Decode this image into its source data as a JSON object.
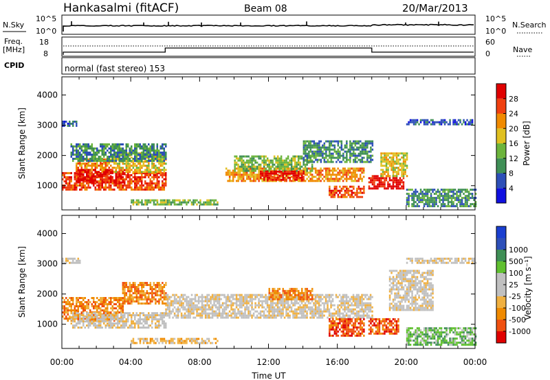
{
  "header": {
    "station": "Hankasalmi (fitACF)",
    "beam": "Beam 08",
    "date": "20/Mar/2013"
  },
  "strips": {
    "nsky": {
      "label": "N.Sky",
      "ticks": [
        "10^5",
        "10^0"
      ],
      "right_label": "N.Search"
    },
    "freq": {
      "label_top": "Freq.",
      "label_bottom": "[MHz]",
      "left_ticks": [
        "18",
        "8"
      ],
      "right_ticks": [
        "60",
        "0"
      ],
      "right_label": "Nave"
    },
    "cpid": {
      "label": "CPID",
      "text": "normal (fast stereo) 153"
    }
  },
  "power_scale": {
    "title": "Power [dB]",
    "colors": [
      "#1010e0",
      "#2d4fb8",
      "#3f8f56",
      "#6cb43c",
      "#e0c020",
      "#f08a00",
      "#f04010",
      "#e00000"
    ],
    "labels": [
      "4",
      "8",
      "12",
      "16",
      "20",
      "24",
      "28"
    ]
  },
  "velocity_scale": {
    "title": "Velocity [m s⁻¹]",
    "colors": [
      "#e00000",
      "#f05010",
      "#f08a00",
      "#f0b040",
      "#c0c0c0",
      "#c0c0c0",
      "#60c030",
      "#3f8f56",
      "#2d4fb8",
      "#1a3fd0"
    ],
    "labels": [
      "-1000",
      "-500",
      "-100",
      "-25",
      "25",
      "100",
      "500",
      "1000"
    ]
  },
  "chart_data": [
    {
      "type": "heatmap",
      "name": "power",
      "ylabel": "Slant Range [km]",
      "xlim": [
        "00:00",
        "24:00"
      ],
      "ylim": [
        200,
        4600
      ],
      "yticks": [
        1000,
        2000,
        3000,
        4000
      ],
      "scatter_regions": [
        {
          "t0": 0.0,
          "t1": 6.0,
          "r0": 850,
          "r1": 1450,
          "level": 6
        },
        {
          "t0": 0.8,
          "t1": 3.0,
          "r0": 1450,
          "r1": 1900,
          "level": 5
        },
        {
          "t0": 0.9,
          "t1": 3.6,
          "r0": 1100,
          "r1": 1550,
          "level": 7
        },
        {
          "t0": 3.0,
          "t1": 6.0,
          "r0": 1450,
          "r1": 2100,
          "level": 4
        },
        {
          "t0": 0.5,
          "t1": 6.0,
          "r0": 1800,
          "r1": 2400,
          "level": 2
        },
        {
          "t0": 9.5,
          "t1": 17.5,
          "r0": 1150,
          "r1": 1600,
          "level": 5
        },
        {
          "t0": 10.0,
          "t1": 14.5,
          "r0": 1500,
          "r1": 2000,
          "level": 3
        },
        {
          "t0": 11.5,
          "t1": 14.0,
          "r0": 1200,
          "r1": 1500,
          "level": 7
        },
        {
          "t0": 14.0,
          "t1": 18.0,
          "r0": 1800,
          "r1": 2500,
          "level": 2
        },
        {
          "t0": 15.5,
          "t1": 17.5,
          "r0": 650,
          "r1": 1000,
          "level": 6
        },
        {
          "t0": 17.8,
          "t1": 19.8,
          "r0": 900,
          "r1": 1350,
          "level": 7
        },
        {
          "t0": 18.5,
          "t1": 20.0,
          "r0": 1300,
          "r1": 2100,
          "level": 4
        },
        {
          "t0": 0.0,
          "t1": 0.8,
          "r0": 3000,
          "r1": 3150,
          "level": 1
        },
        {
          "t0": 20.0,
          "t1": 23.8,
          "r0": 3050,
          "r1": 3200,
          "level": 1
        },
        {
          "t0": 4.0,
          "t1": 9.0,
          "r0": 400,
          "r1": 550,
          "level": 3
        },
        {
          "t0": 20.0,
          "t1": 24.0,
          "r0": 300,
          "r1": 900,
          "level": 2
        }
      ]
    },
    {
      "type": "heatmap",
      "name": "velocity",
      "ylabel": "Slant Range [km]",
      "xlabel": "Time UT",
      "xlim": [
        "00:00",
        "24:00"
      ],
      "ylim": [
        200,
        4600
      ],
      "yticks": [
        1000,
        2000,
        3000,
        4000
      ],
      "xticks": [
        "00:00",
        "04:00",
        "08:00",
        "12:00",
        "16:00",
        "20:00",
        "00:00"
      ],
      "scatter_regions": [
        {
          "t0": 0.0,
          "t1": 3.5,
          "r0": 1100,
          "r1": 1900,
          "level": 2
        },
        {
          "t0": 3.5,
          "t1": 6.0,
          "r0": 1700,
          "r1": 2400,
          "level": 2
        },
        {
          "t0": 0.5,
          "t1": 6.0,
          "r0": 900,
          "r1": 1400,
          "level": 4
        },
        {
          "t0": 6.0,
          "t1": 18.0,
          "r0": 1200,
          "r1": 2000,
          "level": 4
        },
        {
          "t0": 12.0,
          "t1": 14.5,
          "r0": 1800,
          "r1": 2200,
          "level": 2
        },
        {
          "t0": 15.5,
          "t1": 17.5,
          "r0": 650,
          "r1": 1200,
          "level": 1
        },
        {
          "t0": 17.8,
          "t1": 19.5,
          "r0": 700,
          "r1": 1200,
          "level": 1
        },
        {
          "t0": 19.0,
          "t1": 21.5,
          "r0": 1500,
          "r1": 2800,
          "level": 4
        },
        {
          "t0": 0.0,
          "t1": 1.0,
          "r0": 3000,
          "r1": 3200,
          "level": 4
        },
        {
          "t0": 20.0,
          "t1": 24.0,
          "r0": 3000,
          "r1": 3200,
          "level": 4
        },
        {
          "t0": 4.0,
          "t1": 9.0,
          "r0": 400,
          "r1": 550,
          "level": 3
        },
        {
          "t0": 20.0,
          "t1": 24.0,
          "r0": 300,
          "r1": 900,
          "level": 6
        }
      ]
    }
  ]
}
